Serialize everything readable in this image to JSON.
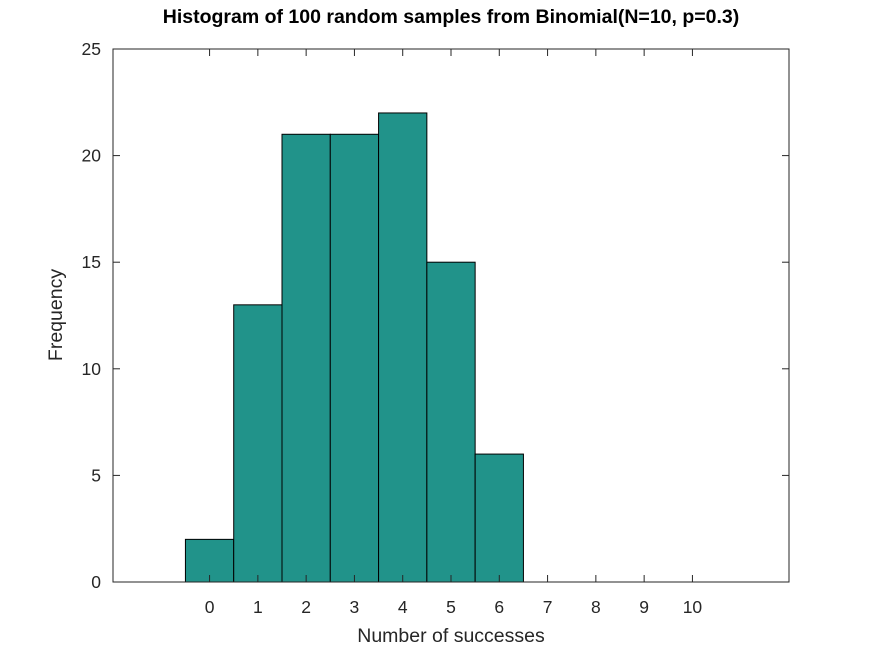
{
  "chart_data": {
    "type": "bar",
    "title": "Histogram of 100 random samples from Binomial(N=10, p=0.3)",
    "xlabel": "Number of successes",
    "ylabel": "Frequency",
    "categories": [
      "0",
      "1",
      "2",
      "3",
      "4",
      "5",
      "6",
      "7",
      "8",
      "9",
      "10"
    ],
    "x": [
      0,
      1,
      2,
      3,
      4,
      5,
      6,
      7,
      8,
      9,
      10
    ],
    "values": [
      2,
      13,
      21,
      21,
      22,
      15,
      6,
      0,
      0,
      0,
      0
    ],
    "xlim": [
      -2,
      12
    ],
    "ylim": [
      0,
      25
    ],
    "yticks": [
      0,
      5,
      10,
      15,
      20,
      25
    ],
    "bar_color": "#21938a",
    "bar_edge_color": "#000000",
    "grid": false,
    "legend": "none"
  }
}
